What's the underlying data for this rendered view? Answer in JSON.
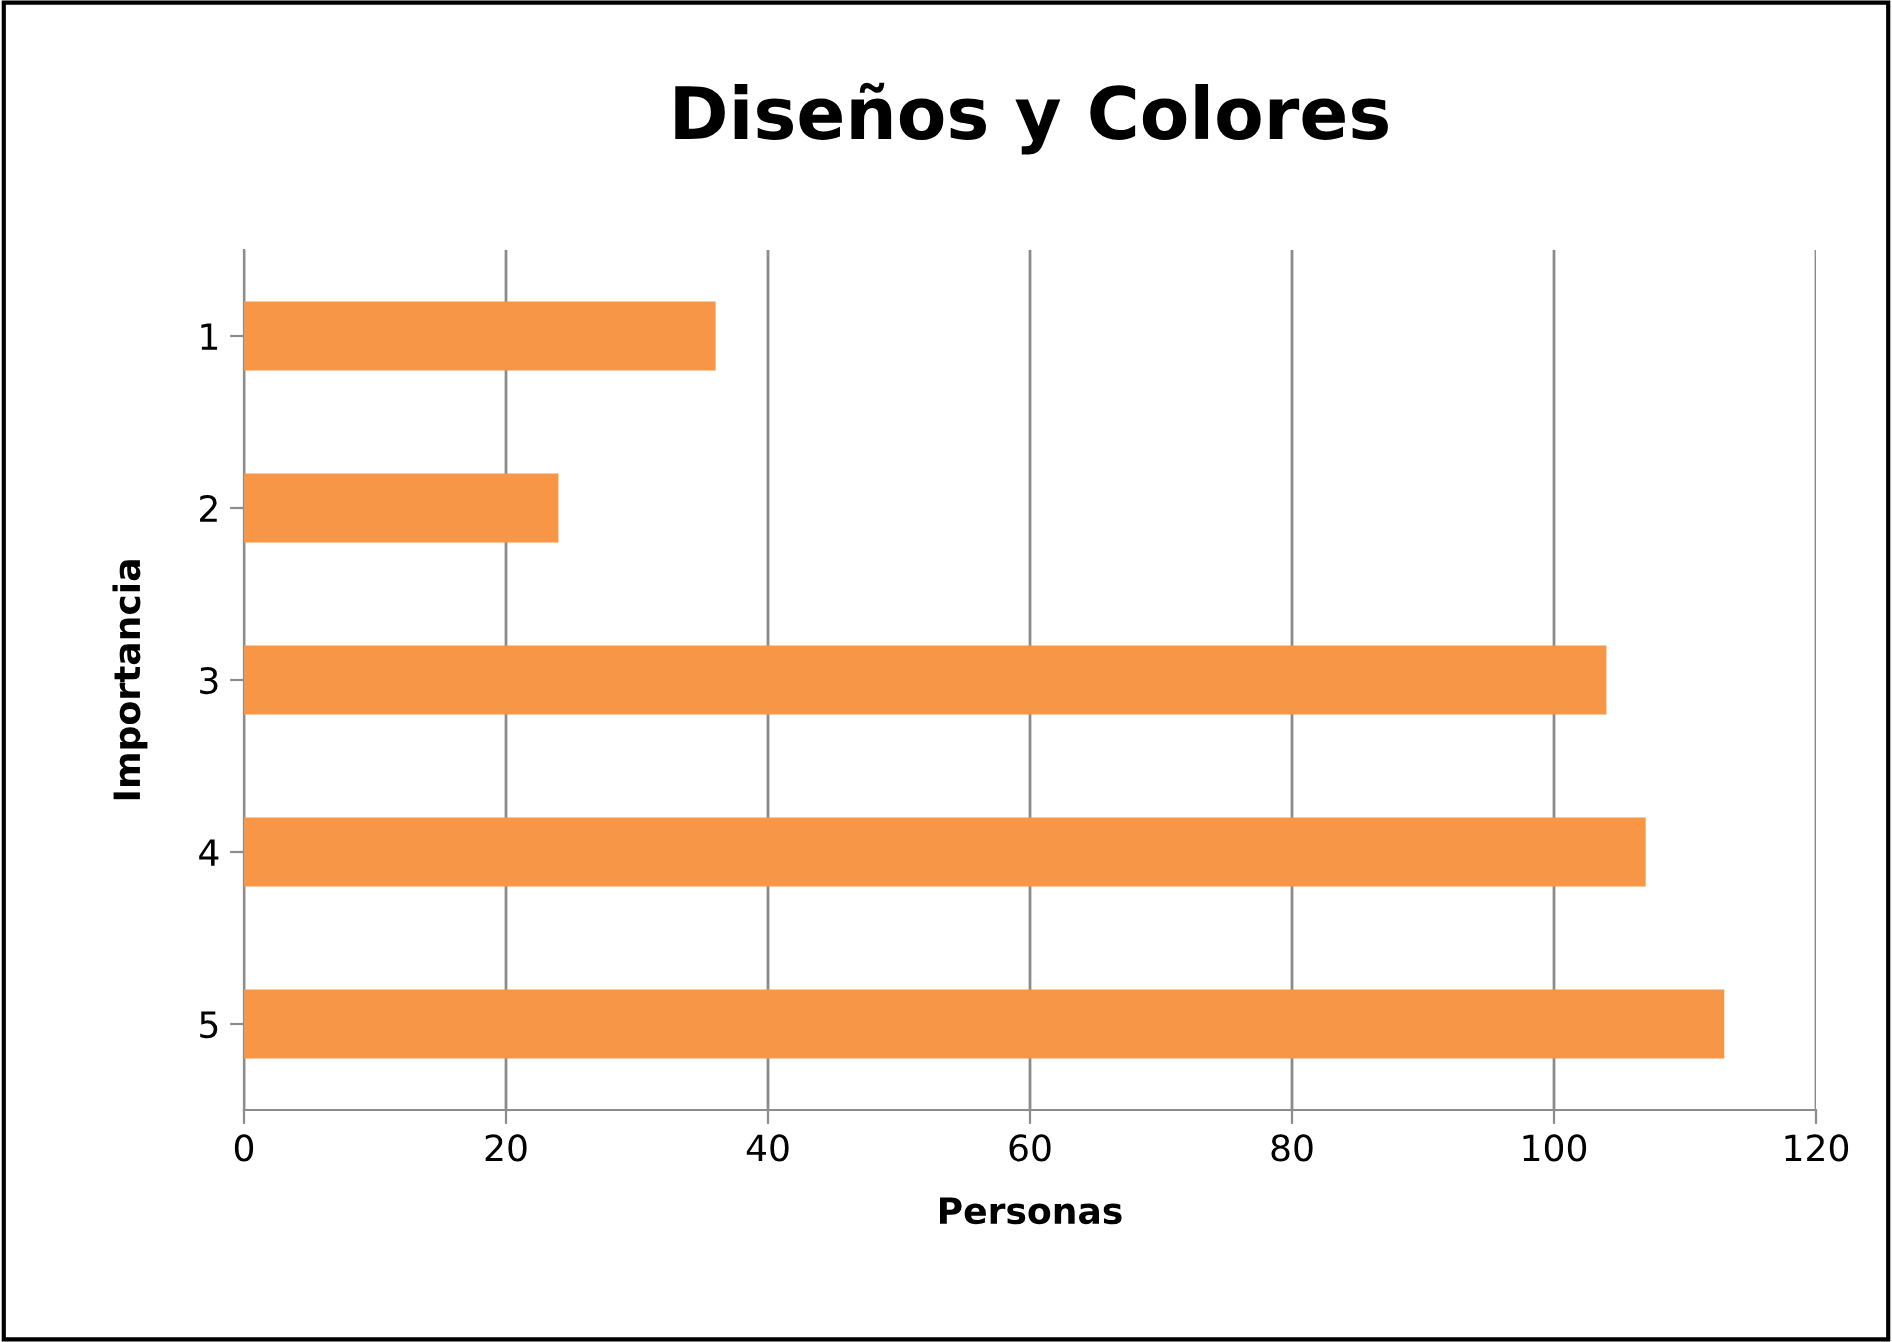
{
  "chart_data": {
    "type": "bar",
    "orientation": "horizontal",
    "title": "Diseños y Colores",
    "xlabel": "Personas",
    "ylabel": "Importancia",
    "categories": [
      "1",
      "2",
      "3",
      "4",
      "5"
    ],
    "values": [
      36,
      24,
      104,
      107,
      113
    ],
    "color": "#f79646",
    "xlim": [
      0,
      120
    ],
    "xticks": [
      0,
      20,
      40,
      60,
      80,
      100,
      120
    ],
    "grid": "x",
    "legend": false
  }
}
